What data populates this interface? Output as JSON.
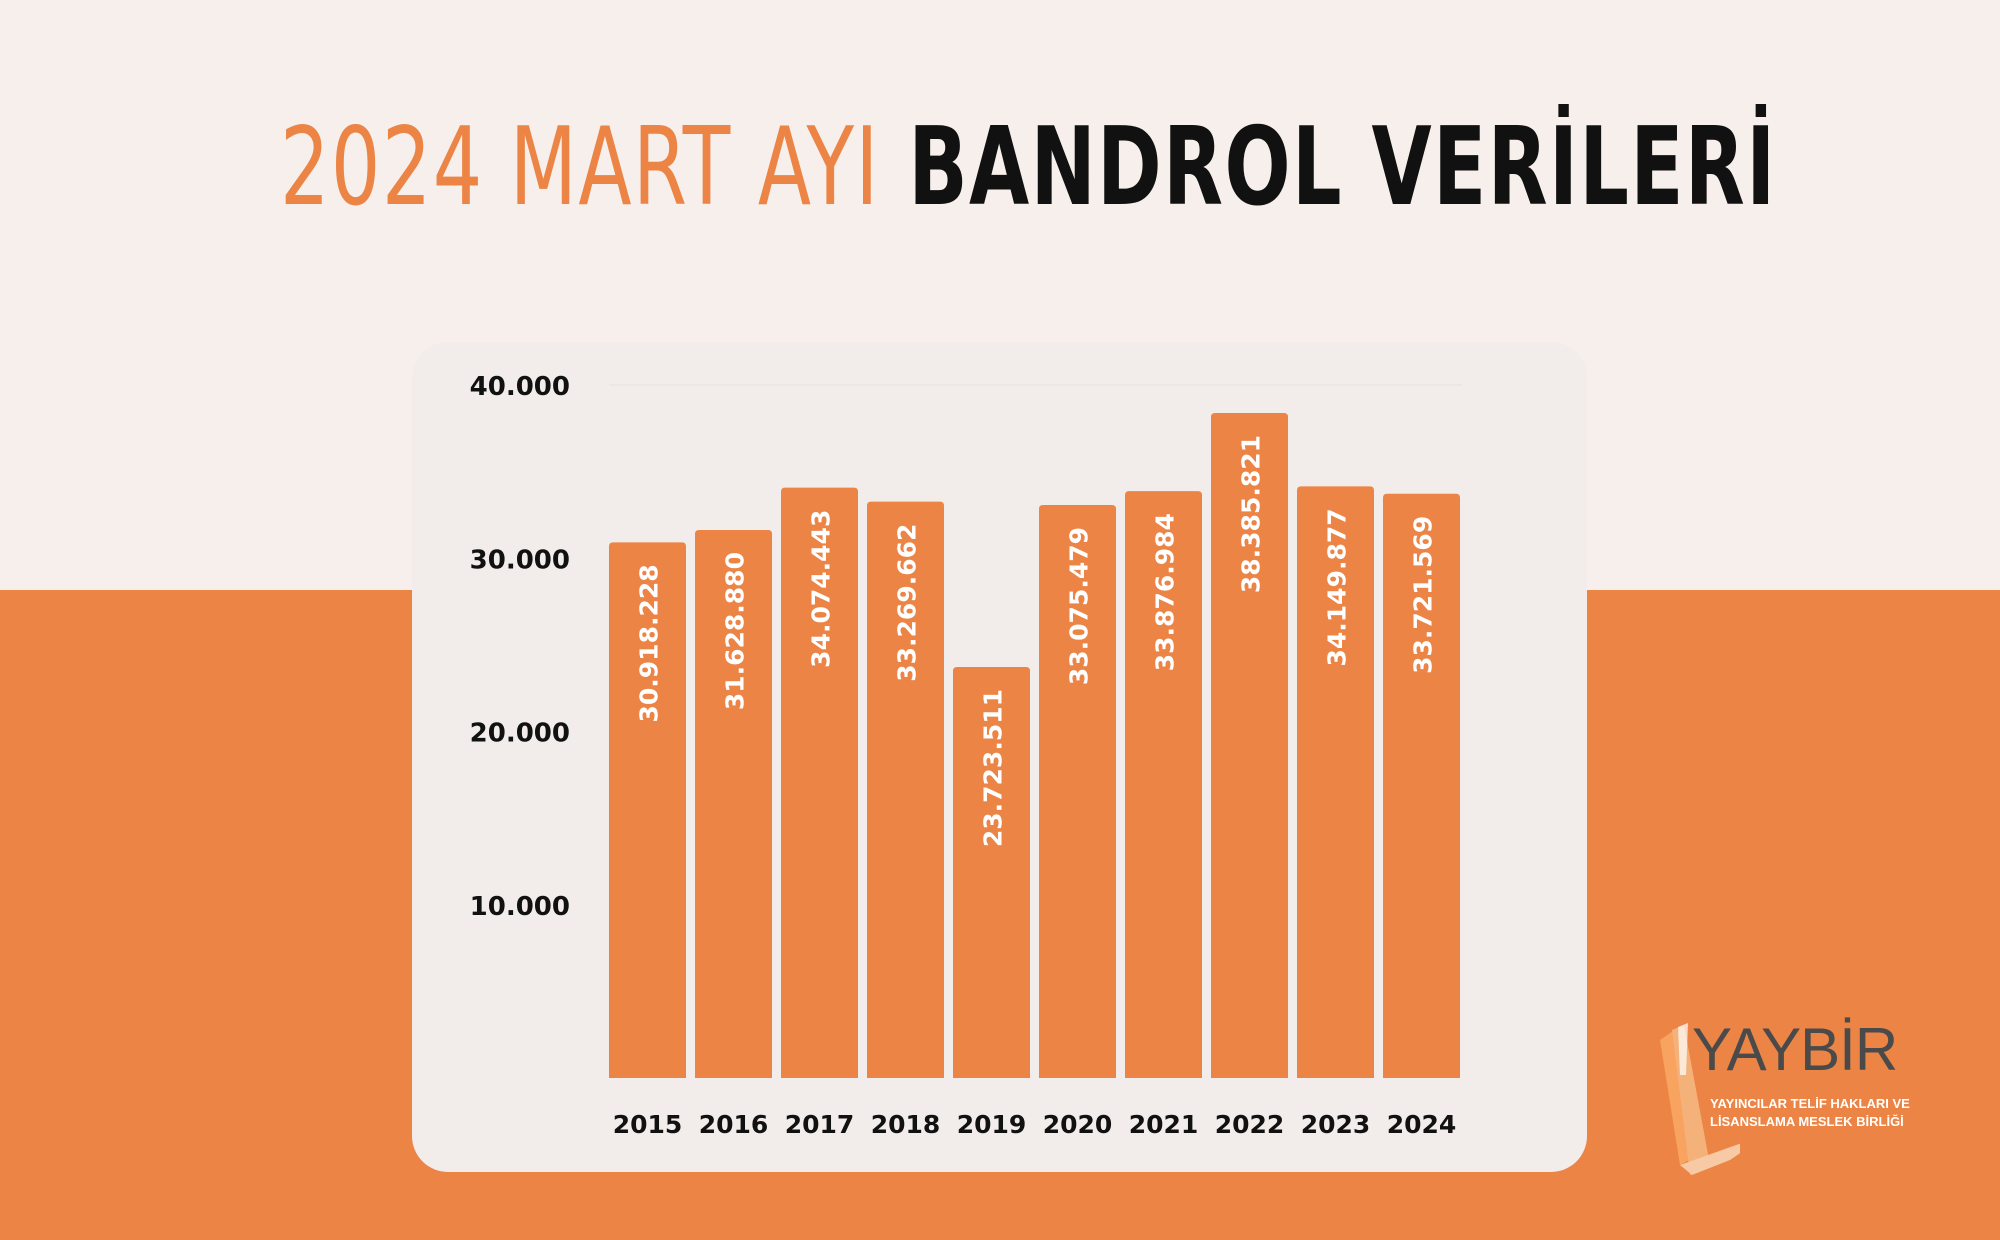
{
  "title": {
    "part1": "2024 MART AYI",
    "part2": "BANDROL VERİLERİ"
  },
  "colors": {
    "accent": "#ec8445",
    "background_top": "#f6efeb",
    "card": "#f2edeb",
    "title_dark": "#111111"
  },
  "chart_data": {
    "type": "bar",
    "categories": [
      "2015",
      "2016",
      "2017",
      "2018",
      "2019",
      "2020",
      "2021",
      "2022",
      "2023",
      "2024"
    ],
    "values": [
      30918228,
      31628880,
      34074443,
      33269662,
      23723511,
      33075479,
      33876984,
      38385821,
      34149877,
      33721569
    ],
    "value_labels": [
      "30.918.228",
      "31.628.880",
      "34.074.443",
      "33.269.662",
      "23.723.511",
      "33.075.479",
      "33.876.984",
      "38.385.821",
      "34.149.877",
      "33.721.569"
    ],
    "y_ticks": [
      10000000,
      20000000,
      30000000,
      40000000
    ],
    "y_tick_labels": [
      "10.000",
      "20.000",
      "30.000",
      "40.000"
    ],
    "ylim": [
      0,
      40000000
    ],
    "grid": false,
    "legend": "none",
    "bar_color": "#ec8445"
  },
  "logo": {
    "name": "YAYBİR",
    "tagline_line1": "YAYINCILAR TELİF HAKLARI VE",
    "tagline_line2": "LİSANSLAMA MESLEK BİRLİĞİ"
  }
}
